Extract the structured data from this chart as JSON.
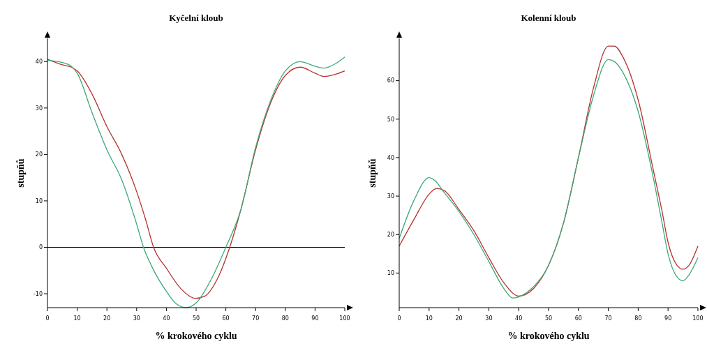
{
  "chart_data": [
    {
      "type": "line",
      "title": "Kyčelní kloub",
      "xlabel": "% krokového cyklu",
      "ylabel": "stupňů",
      "xlim": [
        0,
        100
      ],
      "ylim": [
        -13,
        45
      ],
      "xticks": [
        0,
        10,
        20,
        30,
        40,
        50,
        60,
        70,
        80,
        90,
        100
      ],
      "yticks": [
        -10,
        0,
        10,
        20,
        30,
        40
      ],
      "grid": false,
      "ref_lines": [
        {
          "axis": "y",
          "value": 0,
          "color": "#000000"
        }
      ],
      "series": [
        {
          "color": "#b83030",
          "x": [
            0,
            5,
            8,
            10,
            15,
            20,
            25,
            30,
            33,
            35.7,
            40,
            45,
            49.8,
            53,
            57,
            61.3,
            65,
            70,
            75,
            80,
            85,
            90,
            93,
            97,
            100
          ],
          "values": [
            40.5,
            39.3,
            38.8,
            38,
            33,
            26,
            20,
            12,
            6,
            0,
            -4.5,
            -9,
            -11,
            -10.5,
            -7,
            0,
            8,
            21,
            31,
            37,
            38.8,
            37.5,
            36.8,
            37.3,
            38
          ]
        },
        {
          "color": "#3aaa78",
          "x": [
            0,
            5,
            8,
            10,
            15,
            20,
            25,
            30,
            32.3,
            35,
            40,
            43,
            46.7,
            50,
            55,
            60,
            65,
            70,
            75,
            80,
            85,
            90,
            93,
            97,
            100
          ],
          "values": [
            40.3,
            39.8,
            39,
            37.5,
            29,
            21,
            14.5,
            5,
            0,
            -4,
            -9.5,
            -12,
            -13,
            -12,
            -7,
            0,
            8,
            21.5,
            31.5,
            38,
            40,
            39,
            38.6,
            39.6,
            41
          ]
        }
      ]
    },
    {
      "type": "line",
      "title": "Kolenní kloub",
      "xlabel": "% krokového cyklu",
      "ylabel": "stupňů",
      "xlim": [
        0,
        100
      ],
      "ylim": [
        1,
        71
      ],
      "xticks": [
        0,
        10,
        20,
        30,
        40,
        50,
        60,
        70,
        80,
        90,
        100
      ],
      "yticks": [
        10,
        20,
        30,
        40,
        50,
        60
      ],
      "grid": false,
      "series": [
        {
          "color": "#b83030",
          "x": [
            0,
            5,
            10,
            12.5,
            15,
            20,
            25,
            30,
            35,
            40,
            45,
            50,
            55,
            60,
            65,
            70,
            72,
            75,
            80,
            85,
            88,
            90,
            93,
            95,
            97,
            100
          ],
          "values": [
            17,
            24,
            30.5,
            32,
            31.5,
            26.5,
            21,
            14,
            7.5,
            4,
            6,
            12,
            23,
            40,
            58,
            69,
            69,
            66,
            55,
            37,
            26,
            18,
            12,
            11,
            12,
            17
          ]
        },
        {
          "color": "#3aaa78",
          "x": [
            0,
            5,
            10,
            12,
            15,
            20,
            25,
            30,
            35,
            38,
            40,
            45,
            50,
            55,
            60,
            65,
            70,
            72,
            75,
            80,
            85,
            88,
            90,
            93,
            95,
            97,
            100
          ],
          "values": [
            19,
            29,
            34.8,
            34,
            31,
            26,
            20,
            13,
            6,
            3.5,
            3.8,
            6.5,
            12,
            23,
            40,
            56,
            65.5,
            65,
            62,
            52,
            35,
            23,
            15,
            9,
            8,
            9.5,
            14
          ]
        }
      ]
    }
  ]
}
